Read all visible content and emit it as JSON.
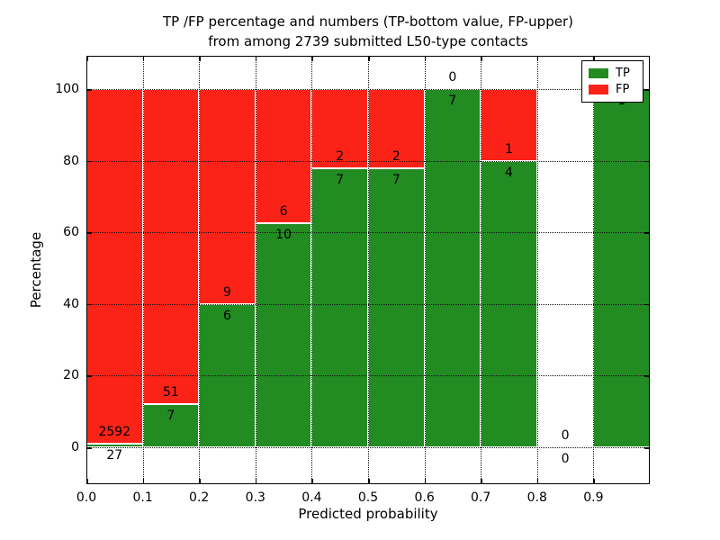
{
  "chart_data": {
    "type": "bar",
    "variant": "stacked-percentage",
    "title_lines": [
      "TP /FP percentage and numbers (TP-bottom value, FP-upper)",
      "from among 2739 submitted L50-type contacts"
    ],
    "xlabel": "Predicted probability",
    "ylabel": "Percentage",
    "total_contacts": 2739,
    "bins": [
      [
        0.0,
        0.1
      ],
      [
        0.1,
        0.2
      ],
      [
        0.2,
        0.3
      ],
      [
        0.3,
        0.4
      ],
      [
        0.4,
        0.5
      ],
      [
        0.5,
        0.6
      ],
      [
        0.6,
        0.7
      ],
      [
        0.7,
        0.8
      ],
      [
        0.8,
        0.9
      ],
      [
        0.9,
        1.0
      ]
    ],
    "series": [
      {
        "name": "TP",
        "color": "#228b22",
        "values": [
          27,
          7,
          6,
          10,
          7,
          7,
          7,
          4,
          0,
          1
        ]
      },
      {
        "name": "FP",
        "color": "#fb2318",
        "values": [
          2592,
          51,
          9,
          6,
          2,
          2,
          0,
          1,
          0,
          0
        ]
      }
    ],
    "percent_tp": [
      1.0,
      12.1,
      40.0,
      62.5,
      77.8,
      77.8,
      100.0,
      80.0,
      0.0,
      100.0
    ],
    "x_tick_values": [
      0.0,
      0.1,
      0.2,
      0.3,
      0.4,
      0.5,
      0.6,
      0.7,
      0.8,
      0.9
    ],
    "x_tick_labels": [
      "0.0",
      "0.1",
      "0.2",
      "0.3",
      "0.4",
      "0.5",
      "0.6",
      "0.7",
      "0.8",
      "0.9"
    ],
    "y_tick_values": [
      0,
      20,
      40,
      60,
      80,
      100
    ],
    "y_tick_labels": [
      "0",
      "20",
      "40",
      "60",
      "80",
      "100"
    ],
    "xlim": [
      0.0,
      1.0
    ],
    "ylim": [
      -10.3,
      109.3
    ],
    "grid": "dotted",
    "bar_edge_color": "#ffffff",
    "axis_color": "#000000",
    "background": "#ffffff",
    "legend_position": "upper-right"
  }
}
